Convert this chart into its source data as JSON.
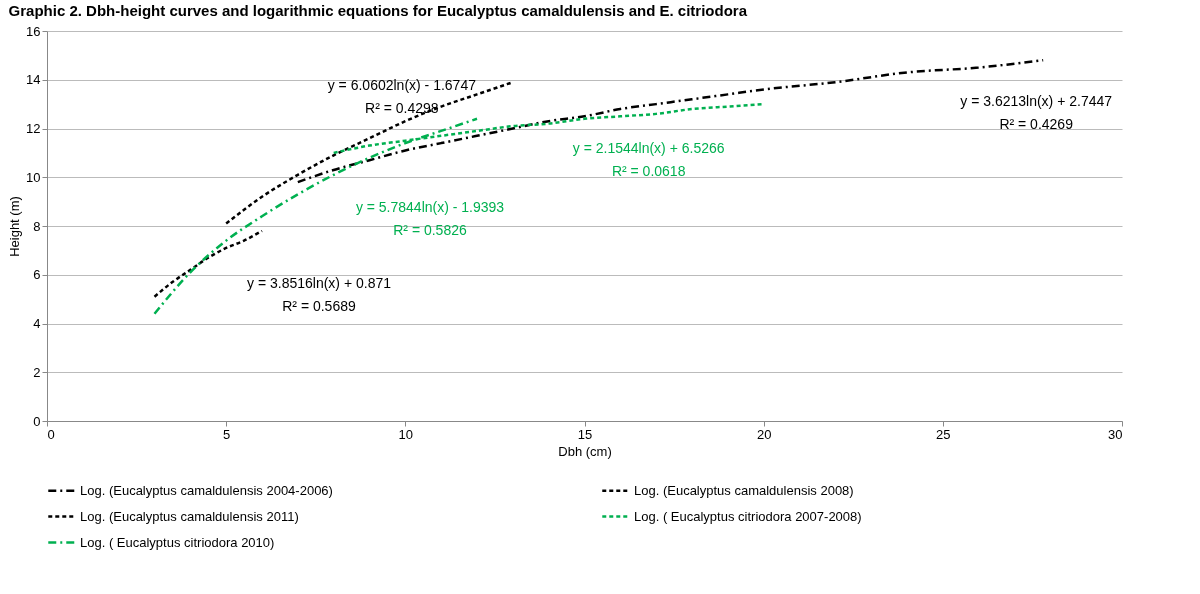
{
  "chart_data": {
    "type": "line",
    "title": "Graphic 2. Dbh-height curves and logarithmic equations for Eucalyptus camaldulensis and E. citriodora",
    "xlabel": "Dbh (cm)",
    "ylabel": "Height (m)",
    "xlim": [
      0,
      30
    ],
    "xticks": [
      0,
      5,
      10,
      15,
      20,
      25,
      30
    ],
    "ylim": [
      0,
      16
    ],
    "yticks": [
      0,
      2,
      4,
      6,
      8,
      10,
      12,
      14,
      16
    ],
    "grid": "y",
    "legend": "bottom",
    "marker": "none",
    "series": [
      {
        "name": "Log. (Eucalyptus  camaldulensis 2004-2006)",
        "color": "#000000",
        "line_style": "dashdot",
        "x": [
          7,
          8,
          9,
          10,
          11,
          12,
          13,
          14,
          15,
          16,
          17,
          18,
          19,
          20,
          22,
          24,
          26,
          27.8
        ],
        "values": [
          9.8,
          10.3,
          10.7,
          11.1,
          11.4,
          11.7,
          12.0,
          12.3,
          12.5,
          12.8,
          13.0,
          13.2,
          13.4,
          13.6,
          13.9,
          14.3,
          14.5,
          14.8
        ]
      },
      {
        "name": "Log. (Eucalyptus  camaldulensis 2008)",
        "color": "#000000",
        "line_style": "dashed",
        "x": [
          5,
          6,
          7,
          8,
          9,
          10,
          11,
          12,
          13
        ],
        "values": [
          8.1,
          9.2,
          10.1,
          10.9,
          11.6,
          12.3,
          12.9,
          13.4,
          13.9
        ]
      },
      {
        "name": "Log. (Eucalyptus  camaldulensis  2011)",
        "color": "#000000",
        "line_style": "dashed",
        "x": [
          3,
          3.5,
          4,
          4.5,
          5,
          5.5,
          6
        ],
        "values": [
          5.1,
          5.7,
          6.2,
          6.7,
          7.1,
          7.4,
          7.8
        ]
      },
      {
        "name": "Log. ( Eucalyptus  citriodora 2007-2008)",
        "color": "#00b050",
        "line_style": "dashed",
        "x": [
          8,
          9,
          10,
          11,
          12,
          13,
          14,
          15,
          16,
          17,
          18,
          19,
          20
        ],
        "values": [
          11.0,
          11.3,
          11.5,
          11.7,
          11.9,
          12.1,
          12.2,
          12.4,
          12.5,
          12.6,
          12.8,
          12.9,
          13.0
        ]
      },
      {
        "name": "Log. ( Eucalyptus  citriodora 2010)",
        "color": "#00b050",
        "line_style": "dashdot",
        "x": [
          3,
          4,
          5,
          6,
          7,
          8,
          9,
          10,
          11,
          12
        ],
        "values": [
          4.4,
          6.1,
          7.4,
          8.4,
          9.3,
          10.1,
          10.8,
          11.4,
          11.9,
          12.4
        ]
      }
    ],
    "annotations": [
      "y = 3.6213ln(x) + 2.7447\nR² = 0.4269",
      "y = 6.0602ln(x) - 1.6747\nR² = 0.4298",
      "y = 3.8516ln(x) + 0.871\nR² = 0.5689",
      "y = 2.1544ln(x) + 6.5266\nR² = 0.0618",
      "y = 5.7844ln(x) - 1.9393\nR² = 0.5826"
    ]
  }
}
